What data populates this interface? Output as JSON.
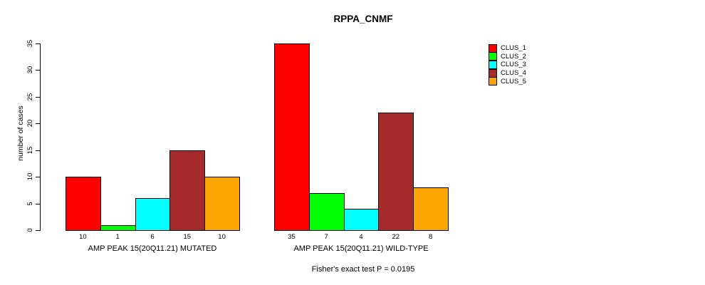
{
  "chart_data": {
    "type": "bar",
    "title": "RPPA_CNMF",
    "ylabel": "number of cases",
    "xlabel": "",
    "ylim": [
      0,
      35
    ],
    "yticks": [
      0,
      5,
      10,
      15,
      20,
      25,
      30,
      35
    ],
    "grid": false,
    "legend_position": "right",
    "bar_value_labels_shown": true,
    "categories": [
      "AMP PEAK 15(20Q11.21) MUTATED",
      "AMP PEAK 15(20Q11.21) WILD-TYPE"
    ],
    "series": [
      {
        "name": "CLUS_1",
        "color": "#FF0000",
        "values": [
          10,
          35
        ]
      },
      {
        "name": "CLUS_2",
        "color": "#00FF00",
        "values": [
          1,
          7
        ]
      },
      {
        "name": "CLUS_3",
        "color": "#00FFFF",
        "values": [
          6,
          4
        ]
      },
      {
        "name": "CLUS_4",
        "color": "#A52A2A",
        "values": [
          15,
          22
        ]
      },
      {
        "name": "CLUS_5",
        "color": "#FFA500",
        "values": [
          10,
          8
        ]
      }
    ],
    "annotation": "Fisher's exact test P = 0.0195",
    "axis_color": "#000000",
    "bar_border_color": "#000000",
    "background_color": "#FFFFFF"
  }
}
